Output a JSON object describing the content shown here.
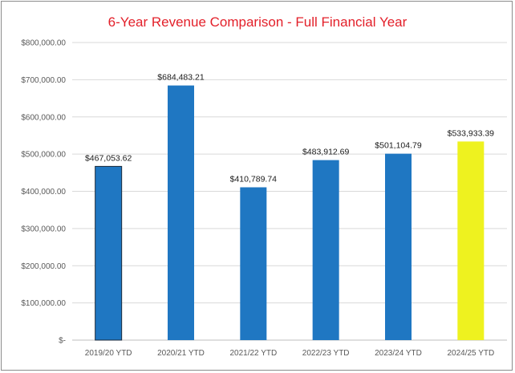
{
  "chart_data": {
    "type": "bar",
    "title": "6-Year Revenue Comparison - Full Financial Year",
    "xlabel": "",
    "ylabel": "",
    "categories": [
      "2019/20 YTD",
      "2020/21 YTD",
      "2021/22 YTD",
      "2022/23 YTD",
      "2023/24 YTD",
      "2024/25 YTD"
    ],
    "values": [
      467053.62,
      684483.21,
      410789.74,
      483912.69,
      501104.79,
      533933.39
    ],
    "data_labels": [
      "$467,053.62",
      "$684,483.21",
      "$410,789.74",
      "$483,912.69",
      "$501,104.79",
      "$533,933.39"
    ],
    "ylim": [
      0,
      800000
    ],
    "y_ticks": [
      0,
      100000,
      200000,
      300000,
      400000,
      500000,
      600000,
      700000,
      800000
    ],
    "y_tick_labels": [
      "$-",
      "$100,000.00",
      "$200,000.00",
      "$300,000.00",
      "$400,000.00",
      "$500,000.00",
      "$600,000.00",
      "$700,000.00",
      "$800,000.00"
    ],
    "grid": true,
    "legend": "none",
    "colors": {
      "title": "#e3202a",
      "bar": "#1f77c2",
      "bar_highlight": "#eef21f",
      "bar_edge": "#1b2a3a",
      "gridline": "#d9d9d9",
      "axis": "#bfbfbf"
    },
    "bar_colors": [
      "#1f77c2",
      "#1f77c2",
      "#1f77c2",
      "#1f77c2",
      "#1f77c2",
      "#eef21f"
    ],
    "bar_outlined": [
      true,
      false,
      false,
      false,
      false,
      false
    ]
  }
}
